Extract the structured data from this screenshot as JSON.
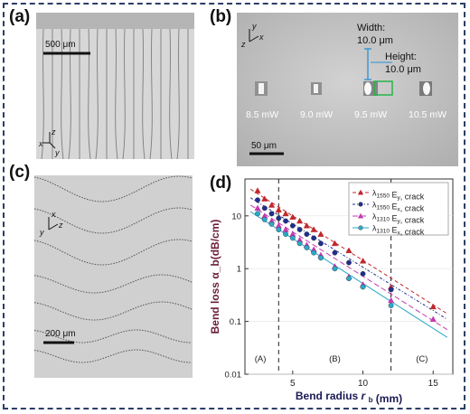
{
  "panel_labels": {
    "a": "(a)",
    "b": "(b)",
    "c": "(c)",
    "d": "(d)"
  },
  "panel_a": {
    "scale_bar": "500 μm",
    "axes": {
      "x": "x",
      "y": "y",
      "z": "z"
    }
  },
  "panel_b": {
    "axes": {
      "x": "x",
      "y": "y",
      "z": "z"
    },
    "width_label": "Width:",
    "width_value": "10.0 μm",
    "height_label": "Height:",
    "height_value": "10.0 μm",
    "powers": [
      "8.5 mW",
      "9.0 mW",
      "9.5 mW",
      "10.5 mW"
    ],
    "scale_bar": "50 μm"
  },
  "panel_c": {
    "scale_bar": "200 μm",
    "axes": {
      "x": "x",
      "y": "y",
      "z": "z"
    }
  },
  "chart_data": {
    "type": "scatter",
    "xlabel_main": "Bend radius ",
    "xlabel_var": "r",
    "xlabel_sub": "b",
    "xlabel_unit": " (mm)",
    "ylabel": "Bend loss α_b(dB/cm)",
    "xlim": [
      1.6,
      16.4
    ],
    "ylim": [
      0.01,
      50
    ],
    "yscale": "log",
    "xticks": [
      5,
      10,
      15
    ],
    "yticks": [
      {
        "v": 0.01,
        "label": "0.01"
      },
      {
        "v": 0.1,
        "label": "0.1"
      },
      {
        "v": 1,
        "label": "1"
      },
      {
        "v": 10,
        "label": "10"
      }
    ],
    "vlines": [
      4,
      12
    ],
    "regions": [
      {
        "label": "(A)",
        "x": 2.7
      },
      {
        "label": "(B)",
        "x": 8
      },
      {
        "label": "(C)",
        "x": 14.2
      }
    ],
    "legend_position": "top-right",
    "series": [
      {
        "name": "λ1550 Ey, crack",
        "base": "λ",
        "sub": "1550",
        "pol": "E",
        "polsub": "y",
        "tail": ", crack",
        "color": "#c0282d",
        "marker": "triangle",
        "dash": "4,3",
        "x": [
          2.5,
          3,
          3.5,
          4,
          4.5,
          5,
          5.5,
          6,
          6.5,
          7,
          8,
          9,
          10,
          12,
          15
        ],
        "y": [
          30,
          21,
          16,
          13,
          11,
          9.5,
          8,
          6.5,
          5.5,
          4.5,
          3,
          2.2,
          1.4,
          0.45,
          0.19
        ],
        "fit": [
          [
            2,
            32
          ],
          [
            16,
            0.14
          ]
        ]
      },
      {
        "name": "λ1550 Ex, crack",
        "base": "λ",
        "sub": "1550",
        "pol": "E",
        "polsub": "x",
        "tail": ", crack",
        "color": "#1f2f8f",
        "marker": "circle",
        "dash": "3,2,1,2",
        "x": [
          2.5,
          3,
          3.5,
          4,
          4.5,
          5,
          5.5,
          6,
          6.5,
          7,
          8,
          9,
          10,
          12
        ],
        "y": [
          20,
          14,
          11,
          9,
          8,
          6.5,
          5.5,
          4.5,
          3.8,
          3,
          2,
          1.3,
          0.8,
          0.4
        ],
        "fit": [
          [
            2,
            22
          ],
          [
            16,
            0.11
          ]
        ]
      },
      {
        "name": "λ1310 Ey, crack",
        "base": "λ",
        "sub": "1310",
        "pol": "E",
        "polsub": "y",
        "tail": ", crack",
        "color": "#c43bb0",
        "marker": "triangle",
        "dash": "6,3",
        "x": [
          2.5,
          3,
          3.5,
          4,
          4.5,
          5,
          5.5,
          6,
          6.5,
          7,
          8,
          9,
          10,
          12,
          15
        ],
        "y": [
          14,
          10,
          8,
          6.5,
          5.5,
          4.5,
          3.5,
          2.8,
          2.3,
          1.8,
          1.1,
          0.7,
          0.5,
          0.25,
          0.11
        ],
        "fit": [
          [
            2,
            16
          ],
          [
            16,
            0.07
          ]
        ]
      },
      {
        "name": "λ1310 Ex, crack",
        "base": "λ",
        "sub": "1310",
        "pol": "E",
        "polsub": "x",
        "tail": ", crack",
        "color": "#2aa9c9",
        "marker": "circle",
        "dash": "",
        "x": [
          2.5,
          3,
          3.5,
          4,
          4.5,
          5,
          5.5,
          6,
          6.5,
          7,
          8,
          9,
          10,
          12
        ],
        "y": [
          11,
          8.5,
          7,
          5.5,
          4.5,
          3.8,
          3,
          2.5,
          2,
          1.6,
          1,
          0.65,
          0.45,
          0.2
        ],
        "fit": [
          [
            2,
            12
          ],
          [
            16,
            0.05
          ]
        ]
      }
    ]
  }
}
